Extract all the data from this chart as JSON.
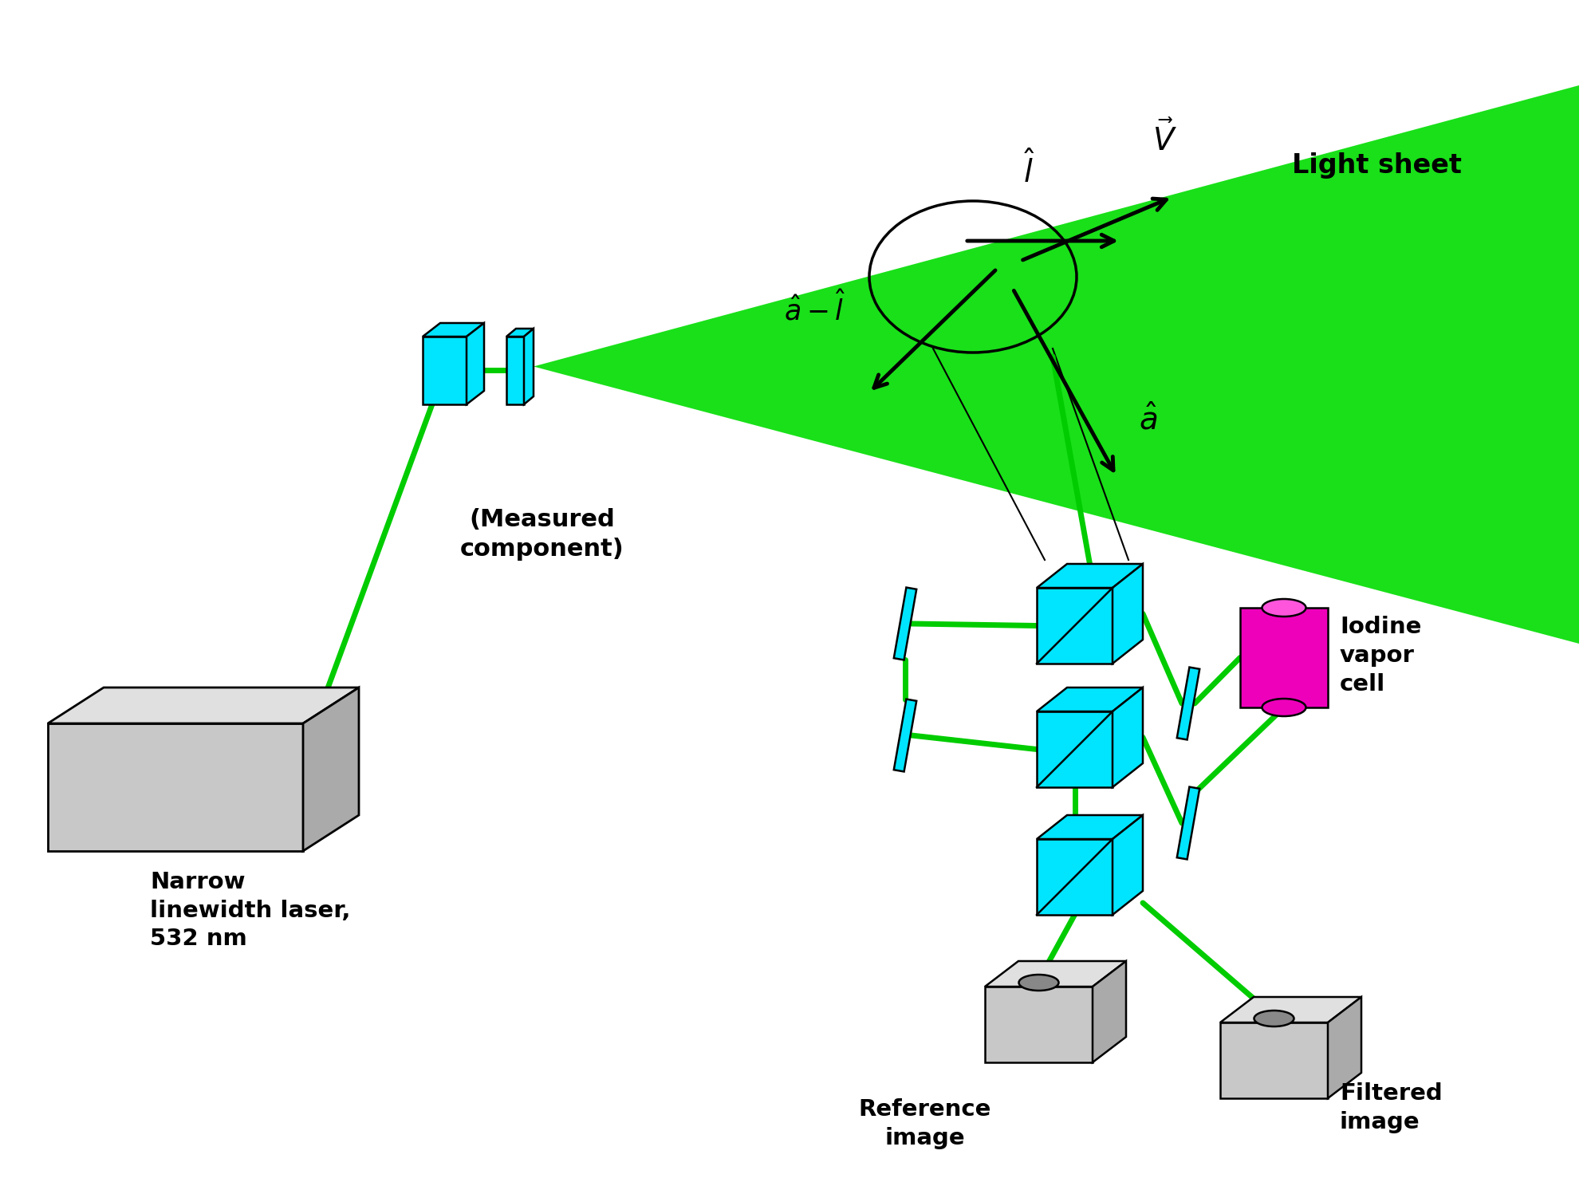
{
  "bg_color": "#ffffff",
  "green_color": "#00cc00",
  "green_beam": "#00cc00",
  "cyan_face": "#00e5ff",
  "cyan_shade": "#00bcd4",
  "magenta_top": "#ff44cc",
  "magenta_body": "#ee00bb",
  "gray_light": "#c8c8c8",
  "gray_mid": "#aaaaaa",
  "gray_dark": "#888888",
  "black": "#000000",
  "laser_label": "Narrow\nlinewidth laser,\n532 nm",
  "measured_label": "(Measured\ncomponent)",
  "light_sheet_label": "Light sheet",
  "iodine_label": "Iodine\nvapor\ncell",
  "reference_label": "Reference\nimage",
  "filtered_label": "Filtered\nimage",
  "green_tri": "#00dd00"
}
